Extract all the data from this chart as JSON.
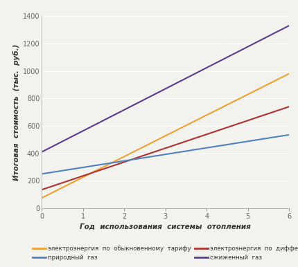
{
  "xlabel": "Год  использования  системы  отопления",
  "ylabel": "Итоговая  стоимость  (тыс.  руб.)",
  "xlim": [
    0,
    6
  ],
  "ylim": [
    0,
    1400
  ],
  "xticks": [
    0,
    1,
    2,
    3,
    4,
    5,
    6
  ],
  "yticks": [
    0,
    200,
    400,
    600,
    800,
    1000,
    1200,
    1400
  ],
  "lines": [
    {
      "label": "электроэнергия  по  обыкновенному  тарифу",
      "x": [
        0,
        6
      ],
      "y": [
        75,
        980
      ],
      "color": "#f0a030",
      "linewidth": 1.5
    },
    {
      "label": "электроэнергия  по  дифференцированному  тарифу",
      "x": [
        0,
        6
      ],
      "y": [
        135,
        740
      ],
      "color": "#b03030",
      "linewidth": 1.5
    },
    {
      "label": "природный  газ",
      "x": [
        0,
        6
      ],
      "y": [
        250,
        535
      ],
      "color": "#5080c0",
      "linewidth": 1.5
    },
    {
      "label": "сжиженный  газ",
      "x": [
        0,
        6
      ],
      "y": [
        410,
        1330
      ],
      "color": "#5a3a90",
      "linewidth": 1.5
    }
  ],
  "background_color": "#f2f2ee",
  "plot_bg_color": "#f2f2ee",
  "grid_color": "#ffffff",
  "tick_color": "#666666",
  "font_size": 7.0,
  "xlabel_fontsize": 7.5,
  "ylabel_fontsize": 7.5
}
